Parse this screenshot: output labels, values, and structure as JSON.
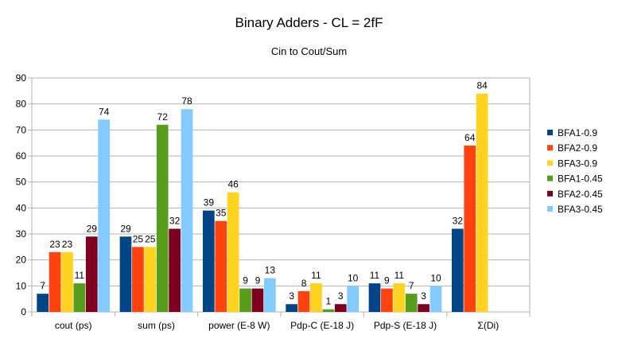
{
  "chart_data": {
    "type": "bar",
    "title": "Binary Adders - CL = 2fF",
    "subtitle": "Cin to Cout/Sum",
    "categories": [
      "cout (ps)",
      "sum (ps)",
      "power (E-8 W)",
      "Pdp-C (E-18 J)",
      "Pdp-S (E-18 J)",
      "Σ(Di)"
    ],
    "ylim": [
      0,
      90
    ],
    "yticks": [
      0,
      10,
      20,
      30,
      40,
      50,
      60,
      70,
      80,
      90
    ],
    "xlabel": "",
    "ylabel": "",
    "grid": true,
    "legend_position": "right",
    "series": [
      {
        "name": "BFA1-0.9",
        "color": "#004586",
        "values": [
          7,
          29,
          39,
          3,
          11,
          32
        ]
      },
      {
        "name": "BFA2-0.9",
        "color": "#ff420e",
        "values": [
          23,
          25,
          35,
          8,
          9,
          64
        ]
      },
      {
        "name": "BFA3-0.9",
        "color": "#ffd320",
        "values": [
          23,
          25,
          46,
          11,
          11,
          84
        ]
      },
      {
        "name": "BFA1-0.45",
        "color": "#579d1c",
        "values": [
          11,
          72,
          9,
          1,
          7,
          null
        ]
      },
      {
        "name": "BFA2-0.45",
        "color": "#7e0021",
        "values": [
          29,
          32,
          9,
          3,
          3,
          null
        ]
      },
      {
        "name": "BFA3-0.45",
        "color": "#83caff",
        "values": [
          74,
          78,
          13,
          10,
          10,
          null
        ]
      }
    ],
    "display_values": [
      [
        7,
        29,
        39,
        3,
        11,
        32
      ],
      [
        23,
        25,
        35,
        8,
        9,
        64
      ],
      [
        23,
        25,
        46,
        11,
        11,
        84
      ],
      [
        11,
        72,
        9,
        1,
        7,
        null
      ],
      [
        29,
        32,
        9,
        3,
        3,
        null
      ],
      [
        74,
        78,
        13,
        10,
        10,
        null
      ]
    ]
  }
}
